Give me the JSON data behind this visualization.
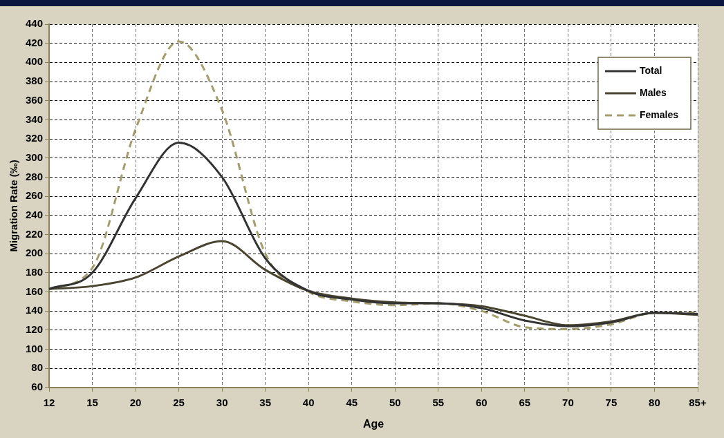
{
  "chart_data": {
    "type": "line",
    "xlabel": "Age",
    "ylabel": "Migration Rate (‰)",
    "categories": [
      "12",
      "15",
      "20",
      "25",
      "30",
      "35",
      "40",
      "45",
      "50",
      "55",
      "60",
      "65",
      "70",
      "75",
      "80",
      "85+"
    ],
    "series": [
      {
        "name": "Total",
        "color": "#333333",
        "line_style": "solid",
        "values": [
          163,
          180,
          258,
          316,
          280,
          195,
          161,
          152,
          148,
          148,
          143,
          130,
          124,
          128,
          138,
          137
        ]
      },
      {
        "name": "Males",
        "color": "#4a4530",
        "line_style": "solid",
        "values": [
          163,
          166,
          175,
          197,
          213,
          183,
          161,
          153,
          149,
          148,
          145,
          135,
          125,
          129,
          138,
          136
        ]
      },
      {
        "name": "Females",
        "color": "#a39d6c",
        "line_style": "dashed",
        "values": [
          163,
          185,
          330,
          422,
          350,
          200,
          160,
          150,
          146,
          148,
          140,
          123,
          121,
          126,
          138,
          138
        ]
      }
    ],
    "ylim": [
      60,
      440
    ],
    "yticks": [
      60,
      80,
      100,
      120,
      140,
      160,
      180,
      200,
      220,
      240,
      260,
      280,
      300,
      320,
      340,
      360,
      380,
      400,
      420,
      440
    ],
    "grid": true,
    "legend": "top right",
    "marker": "none"
  }
}
